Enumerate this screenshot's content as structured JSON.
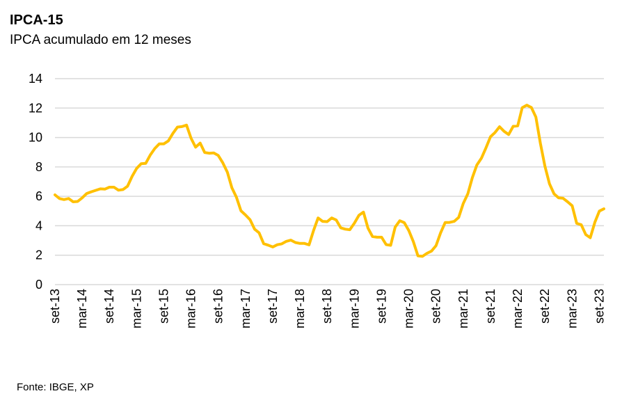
{
  "title": "IPCA-15",
  "subtitle": "IPCA acumulado em 12 meses",
  "source": "Fonte: IBGE, XP",
  "colors": {
    "line": "#FFC000",
    "grid": "#d9d9d9"
  },
  "chart_data": {
    "type": "line",
    "title": "IPCA-15",
    "subtitle": "IPCA acumulado em 12 meses",
    "xlabel": "",
    "ylabel": "",
    "ylim": [
      0,
      14
    ],
    "yticks": [
      0,
      2,
      4,
      6,
      8,
      10,
      12,
      14
    ],
    "grid": true,
    "xtick_labels": [
      "set-13",
      "mar-14",
      "set-14",
      "mar-15",
      "set-15",
      "mar-16",
      "set-16",
      "mar-17",
      "set-17",
      "mar-18",
      "set-18",
      "mar-19",
      "set-19",
      "mar-20",
      "set-20",
      "mar-21",
      "set-21",
      "mar-22",
      "set-22",
      "mar-23",
      "set-23"
    ],
    "x_start": "set-13",
    "x_end": "set-23",
    "frequency": "monthly",
    "series": [
      {
        "name": "IPCA-15 acumulado em 12 meses",
        "values": [
          6.1,
          5.85,
          5.78,
          5.85,
          5.63,
          5.65,
          5.9,
          6.19,
          6.31,
          6.41,
          6.51,
          6.49,
          6.62,
          6.62,
          6.42,
          6.46,
          6.69,
          7.36,
          7.9,
          8.22,
          8.24,
          8.8,
          9.25,
          9.57,
          9.57,
          9.77,
          10.28,
          10.71,
          10.74,
          10.84,
          9.95,
          9.34,
          9.62,
          8.98,
          8.93,
          8.95,
          8.78,
          8.27,
          7.64,
          6.58,
          5.94,
          5.02,
          4.73,
          4.41,
          3.77,
          3.52,
          2.78,
          2.68,
          2.56,
          2.71,
          2.77,
          2.94,
          3.02,
          2.86,
          2.8,
          2.8,
          2.7,
          3.68,
          4.53,
          4.3,
          4.28,
          4.53,
          4.39,
          3.86,
          3.77,
          3.73,
          4.18,
          4.71,
          4.93,
          3.84,
          3.27,
          3.22,
          3.22,
          2.72,
          2.67,
          3.91,
          4.34,
          4.21,
          3.67,
          2.92,
          1.96,
          1.92,
          2.13,
          2.28,
          2.65,
          3.52,
          4.22,
          4.23,
          4.3,
          4.57,
          5.52,
          6.17,
          7.27,
          8.13,
          8.59,
          9.3,
          10.05,
          10.34,
          10.73,
          10.42,
          10.2,
          10.76,
          10.79,
          12.03,
          12.2,
          12.04,
          11.39,
          9.6,
          8.05,
          6.85,
          6.17,
          5.9,
          5.87,
          5.63,
          5.36,
          4.16,
          4.07,
          3.4,
          3.19,
          4.24,
          5.0,
          5.15
        ]
      }
    ]
  }
}
